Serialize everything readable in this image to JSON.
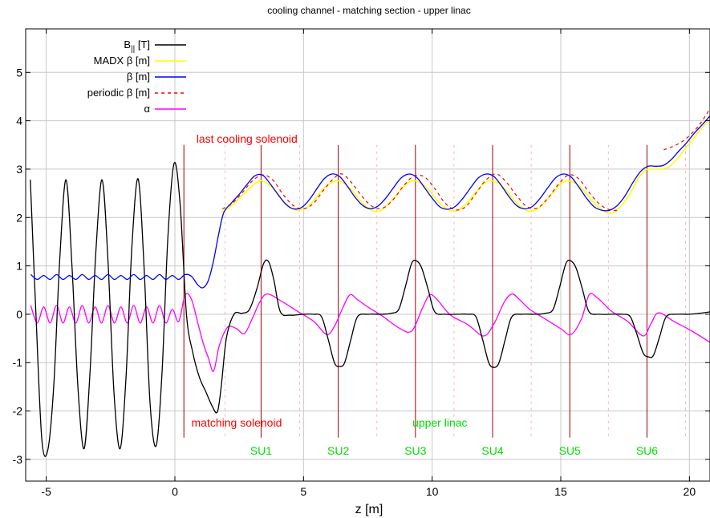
{
  "chart_data": {
    "type": "line",
    "title": "cooling channel - matching section - upper linac",
    "xlabel": "z [m]",
    "ylabel": "",
    "xlim": [
      -5.8,
      20.8
    ],
    "ylim": [
      -3.45,
      5.9
    ],
    "x_ticks": [
      -5,
      0,
      5,
      10,
      15,
      20
    ],
    "x_tick_labels": [
      "-5",
      "0",
      "5",
      "10",
      "15",
      "20"
    ],
    "y_ticks": [
      -3,
      -2,
      -1,
      0,
      1,
      2,
      3,
      4,
      5
    ],
    "y_tick_labels": [
      "-3",
      "-2",
      "-1",
      "0",
      "1",
      "2",
      "3",
      "4",
      "5"
    ],
    "grid": true,
    "legend_position": "top-left",
    "series": [
      {
        "name": "B|| [T]",
        "name_main": "B",
        "name_sub": "||",
        "name_suffix": " [T]",
        "color": "#000000",
        "dash": "solid",
        "x": [
          -5.62,
          -5.4,
          -5.17,
          -4.93,
          -4.7,
          -4.47,
          -4.23,
          -4.0,
          -3.77,
          -3.53,
          -3.3,
          -3.07,
          -2.83,
          -2.6,
          -2.37,
          -2.13,
          -1.9,
          -1.67,
          -1.43,
          -1.2,
          -0.97,
          -0.73,
          -0.5,
          -0.27,
          -0.03,
          0.2,
          0.45,
          0.7,
          0.95,
          1.2,
          1.45,
          1.65,
          1.8,
          2.0,
          2.3,
          2.6,
          2.9,
          3.2,
          3.45,
          3.65,
          3.85,
          4.1,
          4.5,
          5.0,
          5.4,
          5.7,
          5.95,
          6.2,
          6.4,
          6.6,
          6.85,
          7.1,
          7.5,
          8.0,
          8.4,
          8.7,
          8.95,
          9.2,
          9.4,
          9.6,
          9.85,
          10.1,
          10.5,
          11.0,
          11.4,
          11.7,
          11.95,
          12.2,
          12.4,
          12.6,
          12.85,
          13.1,
          13.5,
          14.0,
          14.4,
          14.7,
          14.95,
          15.2,
          15.4,
          15.6,
          15.85,
          16.1,
          16.5,
          17.0,
          17.4,
          17.7,
          17.95,
          18.2,
          18.4,
          18.6,
          18.85,
          19.1,
          19.5,
          20.0,
          20.4,
          20.8
        ],
        "y": [
          2.78,
          0.0,
          -2.6,
          -2.78,
          -1.4,
          1.2,
          2.78,
          1.0,
          -1.5,
          -2.78,
          -1.2,
          1.3,
          2.78,
          1.1,
          -1.6,
          -2.78,
          -1.3,
          1.4,
          2.8,
          1.0,
          -1.8,
          -2.72,
          -1.2,
          1.6,
          3.12,
          2.3,
          0.0,
          -0.8,
          -1.3,
          -1.6,
          -1.9,
          -2.02,
          -1.5,
          -0.5,
          0.0,
          0.02,
          0.1,
          0.55,
          1.05,
          1.08,
          0.7,
          0.05,
          -0.02,
          0.0,
          0.0,
          -0.05,
          -0.5,
          -1.0,
          -1.08,
          -1.0,
          -0.5,
          -0.05,
          0.0,
          0.0,
          0.02,
          0.1,
          0.55,
          1.05,
          1.1,
          0.95,
          0.5,
          0.05,
          0.0,
          0.0,
          0.0,
          -0.05,
          -0.5,
          -1.0,
          -1.1,
          -1.0,
          -0.5,
          -0.05,
          0.0,
          0.0,
          0.02,
          0.1,
          0.55,
          1.05,
          1.1,
          0.95,
          0.5,
          0.05,
          0.0,
          0.0,
          0.0,
          -0.05,
          -0.4,
          -0.8,
          -0.88,
          -0.85,
          -0.45,
          -0.05,
          0.0,
          0.0,
          0.02,
          0.05
        ]
      },
      {
        "name": "MADX β [m]",
        "color": "#ffff00",
        "dash": "solid",
        "x": [
          1.8,
          2.1,
          2.4,
          2.7,
          3.0,
          3.3,
          3.6,
          3.9,
          4.2,
          4.5,
          4.8,
          5.1,
          5.4,
          5.7,
          6.0,
          6.3,
          6.6,
          6.9,
          7.2,
          7.5,
          7.8,
          8.1,
          8.4,
          8.7,
          9.0,
          9.3,
          9.6,
          9.9,
          10.2,
          10.5,
          10.8,
          11.1,
          11.4,
          11.7,
          12.0,
          12.3,
          12.6,
          12.9,
          13.2,
          13.5,
          13.8,
          14.1,
          14.4,
          14.7,
          15.0,
          15.3,
          15.6,
          15.9,
          16.2,
          16.5,
          16.8,
          17.1,
          17.4,
          17.7,
          18.0,
          18.3,
          18.6,
          18.9,
          19.2,
          19.5,
          19.8,
          20.1,
          20.4,
          20.8
        ],
        "y": [
          2.1,
          2.2,
          2.35,
          2.5,
          2.65,
          2.76,
          2.7,
          2.55,
          2.35,
          2.2,
          2.15,
          2.2,
          2.35,
          2.55,
          2.7,
          2.76,
          2.7,
          2.55,
          2.35,
          2.2,
          2.12,
          2.18,
          2.33,
          2.52,
          2.7,
          2.76,
          2.7,
          2.55,
          2.35,
          2.2,
          2.13,
          2.18,
          2.33,
          2.52,
          2.7,
          2.76,
          2.7,
          2.55,
          2.35,
          2.2,
          2.13,
          2.18,
          2.33,
          2.52,
          2.7,
          2.76,
          2.7,
          2.55,
          2.35,
          2.2,
          2.1,
          2.12,
          2.28,
          2.5,
          2.8,
          2.98,
          3.0,
          3.0,
          3.05,
          3.2,
          3.4,
          3.6,
          3.8,
          4.05
        ]
      },
      {
        "name": "β [m]",
        "color": "#0000ff",
        "dash": "solid",
        "x": [
          -5.6,
          -5.35,
          -5.1,
          -4.85,
          -4.6,
          -4.35,
          -4.1,
          -3.85,
          -3.6,
          -3.35,
          -3.1,
          -2.85,
          -2.6,
          -2.35,
          -2.1,
          -1.85,
          -1.6,
          -1.35,
          -1.1,
          -0.85,
          -0.6,
          -0.35,
          -0.1,
          0.15,
          0.4,
          0.65,
          0.9,
          1.1,
          1.3,
          1.5,
          1.7,
          1.9,
          2.2,
          2.5,
          2.8,
          3.1,
          3.4,
          3.7,
          4.0,
          4.3,
          4.6,
          4.9,
          5.2,
          5.5,
          5.8,
          6.1,
          6.4,
          6.7,
          7.0,
          7.3,
          7.6,
          7.9,
          8.2,
          8.5,
          8.8,
          9.1,
          9.4,
          9.7,
          10.0,
          10.3,
          10.6,
          10.9,
          11.2,
          11.5,
          11.8,
          12.1,
          12.4,
          12.7,
          13.0,
          13.3,
          13.6,
          13.9,
          14.2,
          14.5,
          14.8,
          15.1,
          15.4,
          15.7,
          16.0,
          16.3,
          16.6,
          16.9,
          17.2,
          17.5,
          17.8,
          18.1,
          18.4,
          18.7,
          19.0,
          19.3,
          19.6,
          19.9,
          20.2,
          20.5,
          20.8
        ],
        "y": [
          0.82,
          0.72,
          0.8,
          0.72,
          0.82,
          0.72,
          0.8,
          0.72,
          0.82,
          0.72,
          0.8,
          0.72,
          0.82,
          0.72,
          0.8,
          0.72,
          0.82,
          0.72,
          0.8,
          0.72,
          0.82,
          0.72,
          0.8,
          0.72,
          0.82,
          0.78,
          0.6,
          0.55,
          0.7,
          1.1,
          1.65,
          2.1,
          2.3,
          2.48,
          2.68,
          2.86,
          2.88,
          2.7,
          2.48,
          2.28,
          2.18,
          2.2,
          2.35,
          2.58,
          2.8,
          2.9,
          2.85,
          2.65,
          2.42,
          2.25,
          2.18,
          2.24,
          2.4,
          2.62,
          2.82,
          2.9,
          2.83,
          2.62,
          2.4,
          2.22,
          2.17,
          2.23,
          2.4,
          2.62,
          2.82,
          2.9,
          2.85,
          2.65,
          2.42,
          2.24,
          2.18,
          2.23,
          2.4,
          2.62,
          2.82,
          2.9,
          2.84,
          2.63,
          2.4,
          2.22,
          2.15,
          2.15,
          2.25,
          2.45,
          2.72,
          2.95,
          3.06,
          3.06,
          3.08,
          3.2,
          3.38,
          3.55,
          3.75,
          3.92,
          4.1
        ]
      },
      {
        "name": "periodic β [m]",
        "color": "#ff0000",
        "dash": "dashed",
        "x": [
          1.85,
          2.2,
          2.6,
          3.0,
          3.4,
          3.8,
          4.2,
          4.6,
          5.0,
          5.4,
          5.8,
          6.2,
          6.5,
          6.9,
          7.3,
          7.7,
          8.1,
          8.5,
          8.9,
          9.3,
          9.7,
          10.1,
          10.5,
          10.9,
          11.3,
          11.7,
          12.1,
          12.5,
          12.9,
          13.3,
          13.7,
          14.1,
          14.5,
          14.9,
          15.3,
          15.7,
          16.1,
          16.5,
          16.9,
          17.2,
          19.0,
          19.4,
          19.8,
          20.2,
          20.5,
          20.8
        ],
        "y": [
          2.18,
          2.28,
          2.5,
          2.75,
          2.88,
          2.78,
          2.48,
          2.25,
          2.18,
          2.3,
          2.58,
          2.82,
          2.9,
          2.7,
          2.42,
          2.22,
          2.2,
          2.38,
          2.66,
          2.86,
          2.84,
          2.6,
          2.3,
          2.16,
          2.22,
          2.5,
          2.78,
          2.9,
          2.72,
          2.44,
          2.22,
          2.2,
          2.4,
          2.68,
          2.88,
          2.8,
          2.52,
          2.28,
          2.16,
          2.15,
          3.4,
          3.48,
          3.6,
          3.8,
          4.0,
          4.25
        ]
      },
      {
        "name": "α",
        "color": "#ff00ff",
        "dash": "solid",
        "x": [
          -5.6,
          -5.35,
          -5.1,
          -4.85,
          -4.6,
          -4.35,
          -4.1,
          -3.85,
          -3.6,
          -3.35,
          -3.1,
          -2.85,
          -2.6,
          -2.35,
          -2.1,
          -1.85,
          -1.6,
          -1.35,
          -1.1,
          -0.85,
          -0.6,
          -0.35,
          -0.1,
          0.15,
          0.4,
          0.65,
          0.9,
          1.1,
          1.3,
          1.5,
          1.7,
          1.9,
          2.1,
          2.4,
          2.7,
          3.0,
          3.3,
          3.6,
          4.2,
          4.8,
          5.4,
          5.9,
          6.2,
          6.5,
          6.8,
          7.1,
          7.5,
          8.1,
          8.7,
          9.2,
          9.6,
          9.9,
          10.2,
          10.5,
          10.8,
          11.4,
          12.0,
          12.4,
          12.8,
          13.1,
          13.4,
          13.8,
          14.4,
          15.0,
          15.4,
          15.8,
          16.1,
          16.4,
          16.7,
          17.0,
          17.6,
          18.2,
          18.5,
          18.8,
          19.4,
          20.1,
          20.8
        ],
        "y": [
          0.18,
          -0.18,
          0.15,
          -0.18,
          0.18,
          -0.18,
          0.15,
          -0.18,
          0.18,
          -0.18,
          0.15,
          -0.18,
          0.18,
          -0.18,
          0.15,
          -0.18,
          0.18,
          -0.18,
          0.15,
          -0.18,
          0.18,
          -0.18,
          0.1,
          -0.15,
          0.4,
          0.3,
          -0.2,
          -0.6,
          -0.9,
          -1.18,
          -0.7,
          -0.4,
          -0.25,
          -0.3,
          -0.4,
          -0.1,
          0.25,
          0.42,
          0.25,
          0.05,
          -0.15,
          -0.42,
          -0.25,
          0.1,
          0.4,
          0.3,
          0.15,
          -0.05,
          -0.28,
          -0.35,
          0.1,
          0.4,
          0.3,
          0.1,
          -0.05,
          -0.22,
          -0.45,
          -0.2,
          0.25,
          0.42,
          0.3,
          0.1,
          -0.1,
          -0.3,
          -0.42,
          -0.1,
          0.4,
          0.35,
          0.2,
          0.05,
          -0.15,
          -0.45,
          -0.2,
          0.03,
          -0.15,
          -0.35,
          -0.58
        ]
      }
    ],
    "vertical_lines": {
      "solenoids": [
        0.35,
        3.35,
        6.35,
        9.35,
        12.35,
        15.35,
        18.35
      ],
      "dotted": [
        1.95,
        4.85,
        7.85,
        10.85,
        13.85,
        16.85,
        19.85
      ],
      "solid_color": "#a00000",
      "dotted_color": "#ffb0b0",
      "y_range": [
        -2.55,
        3.5
      ]
    },
    "annotations": [
      {
        "text": "last cooling solenoid",
        "x": 2.8,
        "y": 3.55,
        "color": "#ff0000",
        "anchor": "middle"
      },
      {
        "text": "matching solenoid",
        "x": 2.4,
        "y": -2.32,
        "color": "#ff0000",
        "anchor": "middle"
      },
      {
        "text": "upper linac",
        "x": 10.3,
        "y": -2.32,
        "color": "#00dd00",
        "anchor": "middle"
      },
      {
        "text": "SU1",
        "x": 3.35,
        "y": -2.9,
        "color": "#00dd00",
        "anchor": "middle"
      },
      {
        "text": "SU2",
        "x": 6.35,
        "y": -2.9,
        "color": "#00dd00",
        "anchor": "middle"
      },
      {
        "text": "SU3",
        "x": 9.35,
        "y": -2.9,
        "color": "#00dd00",
        "anchor": "middle"
      },
      {
        "text": "SU4",
        "x": 12.35,
        "y": -2.9,
        "color": "#00dd00",
        "anchor": "middle"
      },
      {
        "text": "SU5",
        "x": 15.35,
        "y": -2.9,
        "color": "#00dd00",
        "anchor": "middle"
      },
      {
        "text": "SU6",
        "x": 18.35,
        "y": -2.9,
        "color": "#00dd00",
        "anchor": "middle"
      }
    ]
  }
}
